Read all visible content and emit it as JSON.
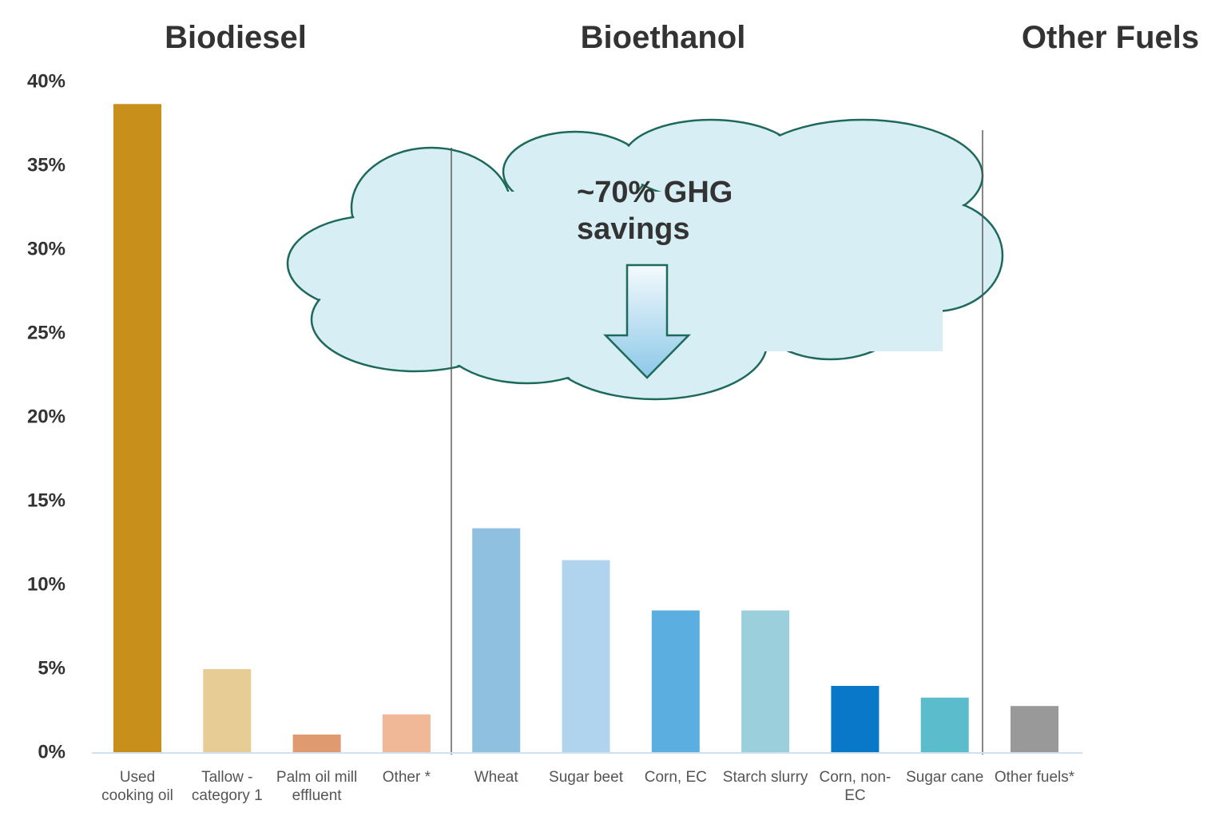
{
  "chart_data": {
    "type": "bar",
    "group_labels": [
      "Biodiesel",
      "Bioethanol",
      "Other Fuels"
    ],
    "annotation": "~70% GHG savings",
    "categories": [
      "Used cooking oil",
      "Tallow - category 1",
      "Palm oil mill effluent",
      "Other *",
      "Wheat",
      "Sugar beet",
      "Corn, EC",
      "Starch slurry",
      "Corn, non-EC",
      "Sugar cane",
      "Other fuels*"
    ],
    "values": [
      38.7,
      5.0,
      1.1,
      2.3,
      13.4,
      11.5,
      8.5,
      8.5,
      4.0,
      3.3,
      2.8
    ],
    "colors": [
      "#c8901a",
      "#e8cc96",
      "#e09a70",
      "#f0b896",
      "#8fc0e0",
      "#b0d4ee",
      "#5aaee0",
      "#9ccfdc",
      "#0a78c8",
      "#5bbccc",
      "#999999"
    ],
    "ylim": [
      0,
      40
    ],
    "yticks": [
      {
        "value": 0,
        "label": "0%"
      },
      {
        "value": 5,
        "label": "5%"
      },
      {
        "value": 10,
        "label": "10%"
      },
      {
        "value": 15,
        "label": "15%"
      },
      {
        "value": 20,
        "label": "20%"
      },
      {
        "value": 25,
        "label": "25%"
      },
      {
        "value": 30,
        "label": "30%"
      },
      {
        "value": 35,
        "label": "35%"
      },
      {
        "value": 40,
        "label": "40%"
      }
    ],
    "grid": false
  }
}
